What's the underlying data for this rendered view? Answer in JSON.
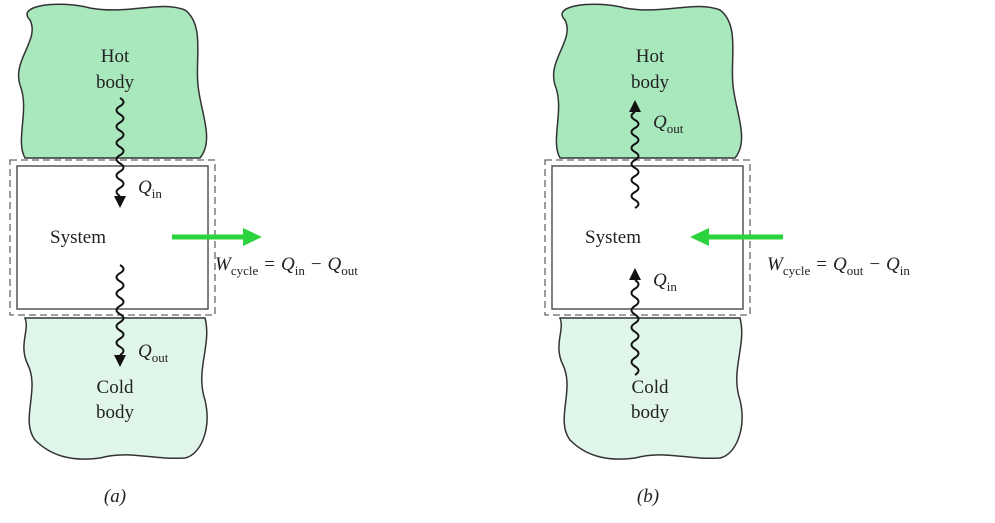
{
  "panels": [
    {
      "caption": "(a)",
      "hot_body": [
        "Hot",
        "body"
      ],
      "cold_body": [
        "Cold",
        "body"
      ],
      "system": "System",
      "top_heat": {
        "symbol": "Q",
        "subscript": "in"
      },
      "bottom_heat": {
        "symbol": "Q",
        "subscript": "out"
      },
      "work": {
        "symbol": "W",
        "subscript": "cycle",
        "equals": "=",
        "first": {
          "symbol": "Q",
          "subscript": "in"
        },
        "minus": "−",
        "second": {
          "symbol": "Q",
          "subscript": "out"
        }
      }
    },
    {
      "caption": "(b)",
      "hot_body": [
        "Hot",
        "body"
      ],
      "cold_body": [
        "Cold",
        "body"
      ],
      "system": "System",
      "top_heat": {
        "symbol": "Q",
        "subscript": "out"
      },
      "bottom_heat": {
        "symbol": "Q",
        "subscript": "in"
      },
      "work": {
        "symbol": "W",
        "subscript": "cycle",
        "equals": "=",
        "first": {
          "symbol": "Q",
          "subscript": "out"
        },
        "minus": "−",
        "second": {
          "symbol": "Q",
          "subscript": "in"
        }
      }
    }
  ]
}
